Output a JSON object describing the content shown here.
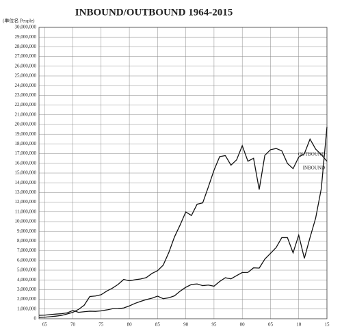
{
  "chart_data": {
    "type": "line",
    "title": "INBOUND/OUTBOUND 1964-2015",
    "y_label": "(単位名 People)",
    "x": [
      1964,
      1965,
      1966,
      1967,
      1968,
      1969,
      1970,
      1971,
      1972,
      1973,
      1974,
      1975,
      1976,
      1977,
      1978,
      1979,
      1980,
      1981,
      1982,
      1983,
      1984,
      1985,
      1986,
      1987,
      1988,
      1989,
      1990,
      1991,
      1992,
      1993,
      1994,
      1995,
      1996,
      1997,
      1998,
      1999,
      2000,
      2001,
      2002,
      2003,
      2004,
      2005,
      2006,
      2007,
      2008,
      2009,
      2010,
      2011,
      2012,
      2013,
      2014,
      2015
    ],
    "series": [
      {
        "name": "OUTBOUND",
        "color": "#111111",
        "values": [
          130000,
          160000,
          210000,
          270000,
          340000,
          490000,
          660000,
          960000,
          1390000,
          2290000,
          2340000,
          2470000,
          2850000,
          3150000,
          3530000,
          4040000,
          3910000,
          4010000,
          4090000,
          4230000,
          4660000,
          4950000,
          5520000,
          6830000,
          8430000,
          9660000,
          11000000,
          10630000,
          11790000,
          11930000,
          13580000,
          15300000,
          16690000,
          16800000,
          15810000,
          16360000,
          17820000,
          16220000,
          16520000,
          13300000,
          16830000,
          17400000,
          17530000,
          17290000,
          15990000,
          15450000,
          16640000,
          16990000,
          18490000,
          17470000,
          16900000,
          16210000
        ]
      },
      {
        "name": "INBOUND",
        "color": "#111111",
        "values": [
          350000,
          370000,
          430000,
          480000,
          520000,
          610000,
          850000,
          660000,
          720000,
          780000,
          760000,
          810000,
          910000,
          1030000,
          1040000,
          1110000,
          1320000,
          1580000,
          1790000,
          1970000,
          2110000,
          2330000,
          2060000,
          2160000,
          2360000,
          2840000,
          3240000,
          3530000,
          3580000,
          3410000,
          3470000,
          3350000,
          3840000,
          4220000,
          4110000,
          4440000,
          4760000,
          4770000,
          5240000,
          5210000,
          6140000,
          6730000,
          7330000,
          8350000,
          8350000,
          6790000,
          8610000,
          6220000,
          8360000,
          10360000,
          13410000,
          19740000
        ]
      }
    ],
    "xlim": [
      1964,
      2015
    ],
    "xticks": [
      {
        "value": 1965,
        "label": "65"
      },
      {
        "value": 1970,
        "label": "70"
      },
      {
        "value": 1975,
        "label": "75"
      },
      {
        "value": 1980,
        "label": "80"
      },
      {
        "value": 1985,
        "label": "85"
      },
      {
        "value": 1990,
        "label": "90"
      },
      {
        "value": 1995,
        "label": "95"
      },
      {
        "value": 2000,
        "label": "00"
      },
      {
        "value": 2005,
        "label": "05"
      },
      {
        "value": 2010,
        "label": "10"
      },
      {
        "value": 2015,
        "label": "15"
      }
    ],
    "ylim": [
      0,
      30000000
    ],
    "yticks": [
      0,
      {
        "value": 1000000,
        "label": "1,000,000"
      },
      {
        "value": 2000000,
        "label": "2,000,000"
      },
      {
        "value": 3000000,
        "label": "3,000,000"
      },
      {
        "value": 4000000,
        "label": "4,000,000"
      },
      {
        "value": 5000000,
        "label": "5,000,000"
      },
      {
        "value": 6000000,
        "label": "6,000,000"
      },
      {
        "value": 7000000,
        "label": "7,000,000"
      },
      {
        "value": 8000000,
        "label": "8,000,000"
      },
      {
        "value": 9000000,
        "label": "9,000,000"
      },
      {
        "value": 10000000,
        "label": "10,000,000"
      },
      {
        "value": 11000000,
        "label": "11,000,000"
      },
      {
        "value": 12000000,
        "label": "12,000,000"
      },
      {
        "value": 13000000,
        "label": "13,000,000"
      },
      {
        "value": 14000000,
        "label": "14,000,000"
      },
      {
        "value": 15000000,
        "label": "15,000,000"
      },
      {
        "value": 16000000,
        "label": "16,000,000"
      },
      {
        "value": 17000000,
        "label": "17,000,000"
      },
      {
        "value": 18000000,
        "label": "18,000,000"
      },
      {
        "value": 19000000,
        "label": "19,000,000"
      },
      {
        "value": 20000000,
        "label": "20,000,000"
      },
      {
        "value": 21000000,
        "label": "21,000,000"
      },
      {
        "value": 22000000,
        "label": "22,000,000"
      },
      {
        "value": 23000000,
        "label": "23,000,000"
      },
      {
        "value": 24000000,
        "label": "24,000,000"
      },
      {
        "value": 25000000,
        "label": "25,000,000"
      },
      {
        "value": 26000000,
        "label": "26,000,000"
      },
      {
        "value": 27000000,
        "label": "27,000,000"
      },
      {
        "value": 28000000,
        "label": "28,000,000"
      },
      {
        "value": 29000000,
        "label": "29,000,000"
      },
      {
        "value": 30000000,
        "label": "30,000,000"
      }
    ],
    "grid": true
  }
}
